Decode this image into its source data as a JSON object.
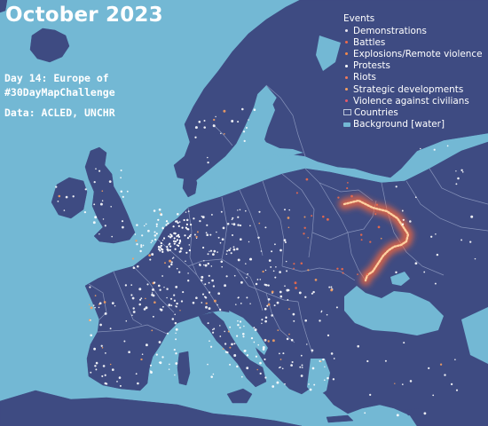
{
  "title": "October 2023",
  "subtitle_line1": "Day 14: Europe of",
  "subtitle_line2": "#30DayMapChallenge",
  "source": "Data: ACLED, UNCHR",
  "legend": {
    "title": "Events",
    "items": [
      {
        "label": "Demonstrations",
        "color": "#e8e4f0"
      },
      {
        "label": "Battles",
        "color": "#f06a4a"
      },
      {
        "label": "Explosions/Remote violence",
        "color": "#f58a4a"
      },
      {
        "label": "Protests",
        "color": "#ffffff"
      },
      {
        "label": "Riots",
        "color": "#f07a5a"
      },
      {
        "label": "Strategic developments",
        "color": "#f5a060"
      },
      {
        "label": "Violence against civilians",
        "color": "#e85a6a"
      },
      {
        "label": "Countries",
        "color": "#3e4b82"
      },
      {
        "label": "Background [water]",
        "color": "#73b8d4"
      }
    ]
  },
  "colors": {
    "water": "#73b8d4",
    "land": "#3e4b82",
    "borders": "#8e9ac0",
    "frontline_glow": "#ff6a3a"
  }
}
